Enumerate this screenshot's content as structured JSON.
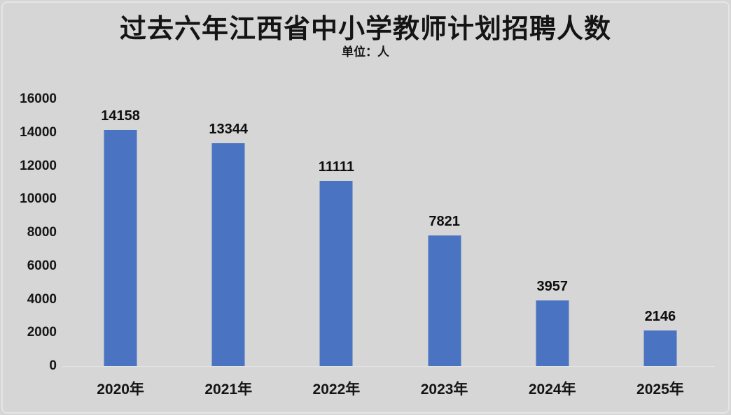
{
  "page": {
    "background_color": "#d6d6d6",
    "text_color": "#141414"
  },
  "chart_data": {
    "type": "bar",
    "title": "过去六年江西省中小学教师计划招聘人数",
    "subtitle": "单位：人",
    "categories": [
      "2020年",
      "2021年",
      "2022年",
      "2023年",
      "2024年",
      "2025年"
    ],
    "values": [
      14158,
      13344,
      11111,
      7821,
      3957,
      2146
    ],
    "data_labels": [
      "14158",
      "13344",
      "11111",
      "7821",
      "3957",
      "2146"
    ],
    "xlabel": "",
    "ylabel": "",
    "ylim": [
      0,
      16000
    ],
    "ytick_labels": [
      "0",
      "2000",
      "4000",
      "6000",
      "8000",
      "10000",
      "12000",
      "14000",
      "16000"
    ],
    "grid": false,
    "legend": false,
    "bar_color": "#4a74c1",
    "axis_line_color": "#e1e1e1"
  }
}
